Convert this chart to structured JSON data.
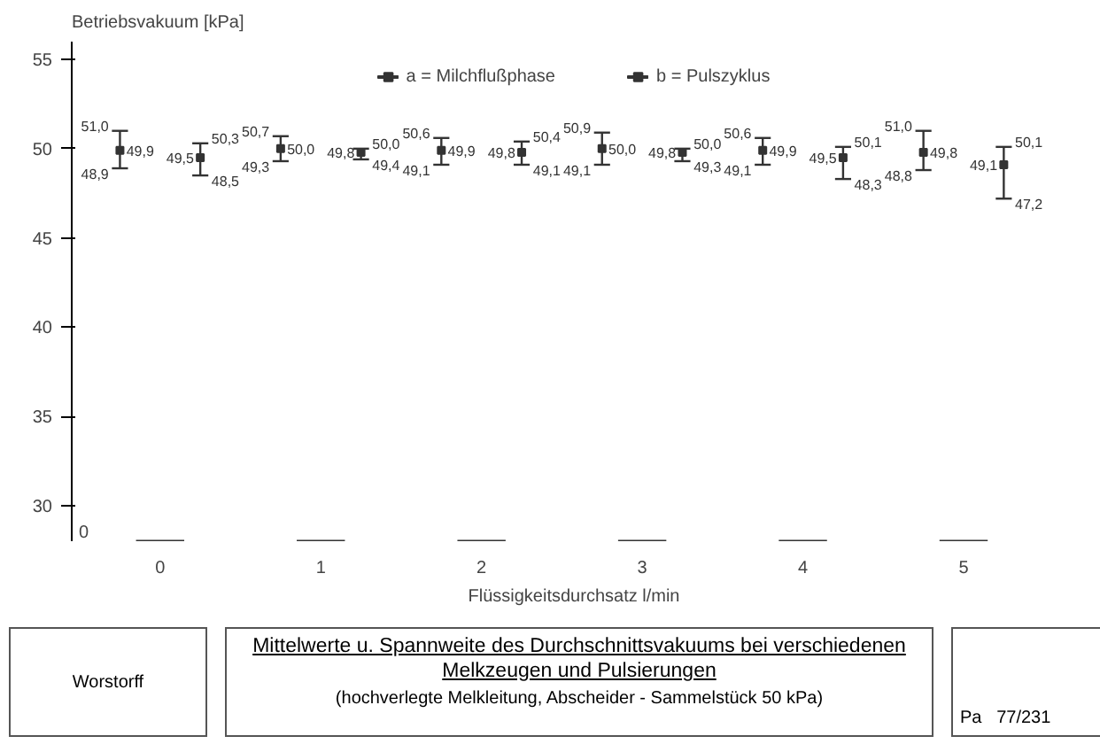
{
  "chart_data": {
    "type": "scatter",
    "title": "Mittelwerte u. Spannweite des Durchschnittsvakuums bei verschiedenen Melkzeugen und Pulsierungen",
    "subtitle": "(hochverlegte Melkleitung, Abscheider - Sammelstück 50 kPa)",
    "ylabel": "Betriebsvakuum [kPa]",
    "xlabel": "Flüssigkeitsdurchsatz l/min",
    "categories": [
      "0",
      "1",
      "2",
      "3",
      "4",
      "5"
    ],
    "ylim": [
      28,
      56
    ],
    "yticks": [
      30,
      35,
      40,
      45,
      50,
      55
    ],
    "series": [
      {
        "name": "a = Milchflußphase",
        "color": "#333333",
        "values": [
          49.9,
          50.0,
          49.9,
          50.0,
          49.9,
          49.8
        ],
        "errors": [
          [
            48.9,
            51.0
          ],
          [
            49.3,
            50.7
          ],
          [
            49.1,
            50.6
          ],
          [
            49.1,
            50.9
          ],
          [
            49.1,
            50.6
          ],
          [
            48.8,
            51.0
          ]
        ],
        "value_labels": [
          "49,9",
          "50,0",
          "49,9",
          "50,0",
          "49,9",
          "49,8"
        ]
      },
      {
        "name": "b = Pulszyklus",
        "color": "#333333",
        "values": [
          49.5,
          49.8,
          49.8,
          49.8,
          49.5,
          49.1
        ],
        "errors": [
          [
            48.5,
            50.3
          ],
          [
            49.4,
            50.0
          ],
          [
            49.1,
            50.4
          ],
          [
            49.3,
            50.0
          ],
          [
            48.3,
            50.1
          ],
          [
            47.2,
            50.1
          ]
        ],
        "value_labels": [
          "49,5",
          "49,8",
          "49,8",
          "49,8",
          "49,5",
          "49,1"
        ]
      }
    ],
    "marker": "square",
    "legend": "top",
    "grid": false,
    "annotations": [
      "51,0",
      "48,9",
      "50,3",
      "48,5",
      "50,7",
      "49,3",
      "50,0",
      "49,4",
      "50,6",
      "49,1",
      "50,4",
      "49,1",
      "50,9",
      "49,1",
      "50,0",
      "49,3",
      "50,6",
      "49,1",
      "50,1",
      "48,3",
      "51,0",
      "48,8",
      "50,1",
      "47,2",
      "0",
      "Worstorff",
      "Pa",
      "77/231"
    ]
  }
}
